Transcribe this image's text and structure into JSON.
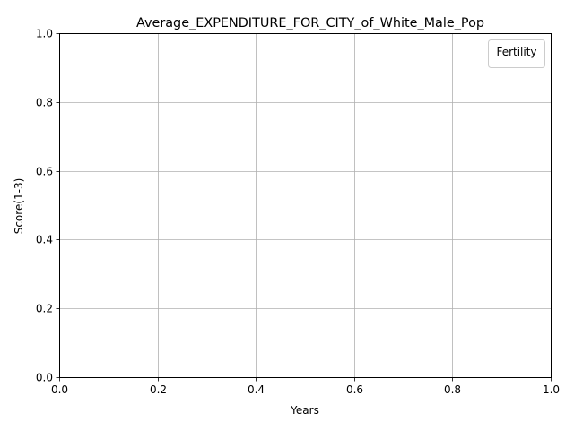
{
  "chart_data": {
    "type": "line",
    "title": "Average_EXPENDITURE_FOR_CITY_of_White_Male_Pop",
    "xlabel": "Years",
    "ylabel": "Score(1-3)",
    "xlim": [
      0.0,
      1.0
    ],
    "ylim": [
      0.0,
      1.0
    ],
    "x_ticks": [
      "0.0",
      "0.2",
      "0.4",
      "0.6",
      "0.8",
      "1.0"
    ],
    "y_ticks": [
      "0.0",
      "0.2",
      "0.4",
      "0.6",
      "0.8",
      "1.0"
    ],
    "grid": true,
    "legend": {
      "title": "Fertility",
      "placement": "top-right",
      "entries": []
    },
    "series": []
  },
  "colors": {
    "background": "#ffffff",
    "axis": "#000000",
    "grid": "#b0b0b0",
    "legend_border": "#cccccc"
  }
}
